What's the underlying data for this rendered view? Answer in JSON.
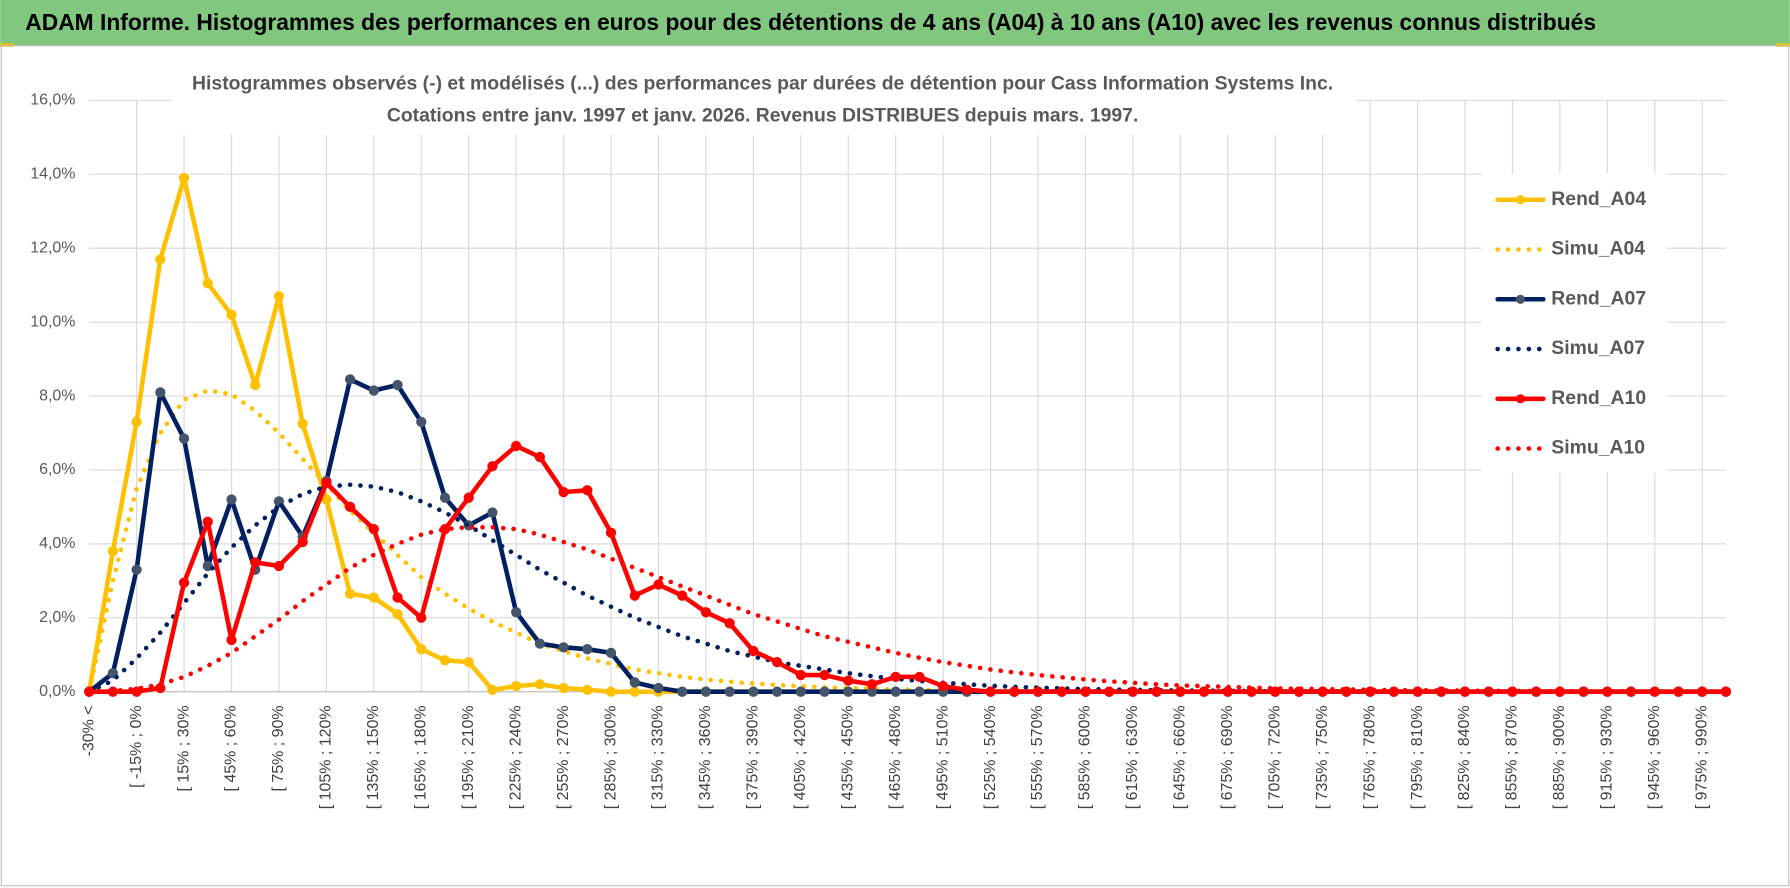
{
  "header": {
    "title": "ADAM Informe. Histogrammes des performances en euros pour des détentions de 4 ans (A04) à 10 ans (A10) avec les revenus connus distribués"
  },
  "chart_data": {
    "type": "line",
    "title": "Histogrammes observés (-) et modélisés (...) des performances par durées de détention pour Cass Information Systems Inc.",
    "subtitle": "Cotations entre janv. 1997 et janv. 2026. Revenus DISTRIBUES depuis mars. 1997.",
    "categories": [
      "-30% <",
      null,
      "[ -15% ; 0%",
      null,
      "[ 15% ; 30%",
      null,
      "[ 45% ; 60%",
      null,
      "[ 75% ; 90%",
      null,
      "[ 105% ; 120%",
      null,
      "[ 135% ; 150%",
      null,
      "[ 165% ; 180%",
      null,
      "[ 195% ; 210%",
      null,
      "[ 225% ; 240%",
      null,
      "[ 255% ; 270%",
      null,
      "[ 285% ; 300%",
      null,
      "[ 315% ; 330%",
      null,
      "[ 345% ; 360%",
      null,
      "[ 375% ; 390%",
      null,
      "[ 405% ; 420%",
      null,
      "[ 435% ; 450%",
      null,
      "[ 465% ; 480%",
      null,
      "[ 495% ; 510%",
      null,
      "[ 525% ; 540%",
      null,
      "[ 555% ; 570%",
      null,
      "[ 585% ; 600%",
      null,
      "[ 615% ; 630%",
      null,
      "[ 645% ; 660%",
      null,
      "[ 675% ; 690%",
      null,
      "[ 705% ; 720%",
      null,
      "[ 735% ; 750%",
      null,
      "[ 765% ; 780%",
      null,
      "[ 795% ; 810%",
      null,
      "[ 825% ; 840%",
      null,
      "[ 855% ; 870%",
      null,
      "[ 885% ; 900%",
      null,
      "[ 915% ; 930%",
      null,
      "[ 945% ; 960%",
      null,
      "[ 975% ; 990%",
      null
    ],
    "series": [
      {
        "name": "Rend_A04",
        "color": "#ffc000",
        "style": "solid",
        "markers": true,
        "marker_color": "#ffc000",
        "values": [
          0,
          3.8,
          7.3,
          11.7,
          13.9,
          11.05,
          10.2,
          8.3,
          10.7,
          7.25,
          5.2,
          2.65,
          2.55,
          2.1,
          1.15,
          0.85,
          0.8,
          0.05,
          0.15,
          0.2,
          0.1,
          0.05,
          0,
          0,
          0,
          0,
          0,
          0,
          0,
          0,
          0,
          0,
          0,
          0,
          0,
          0,
          0,
          0,
          0,
          0,
          0,
          0,
          0,
          0,
          0,
          0,
          0,
          0,
          0,
          0,
          0,
          0,
          0,
          0,
          0,
          0,
          0,
          0,
          0,
          0,
          0,
          0,
          0,
          0,
          0,
          0,
          0,
          0,
          0,
          0
        ]
      },
      {
        "name": "Simu_A04",
        "color": "#ffc000",
        "style": "dotted",
        "markers": false,
        "values": [
          0,
          3.0,
          5.5,
          7.0,
          7.9,
          8.15,
          8.05,
          7.6,
          7.0,
          6.3,
          5.6,
          4.9,
          4.3,
          3.7,
          3.1,
          2.65,
          2.25,
          1.9,
          1.6,
          1.3,
          1.1,
          0.9,
          0.75,
          0.6,
          0.5,
          0.4,
          0.33,
          0.27,
          0.22,
          0.18,
          0.15,
          0.12,
          0.1,
          0.08,
          0.06,
          0.05,
          0.04,
          0.03,
          0.02,
          0.02,
          0.01,
          0.01,
          0.01,
          0,
          0,
          0,
          0,
          0,
          0,
          0,
          0,
          0,
          0,
          0,
          0,
          0,
          0,
          0,
          0,
          0,
          0,
          0,
          0,
          0,
          0,
          0,
          0,
          0,
          0,
          0
        ]
      },
      {
        "name": "Rend_A07",
        "color": "#002060",
        "style": "solid",
        "markers": true,
        "marker_color": "#44546a",
        "values": [
          0,
          0.5,
          3.3,
          8.1,
          6.85,
          3.4,
          5.2,
          3.3,
          5.15,
          4.2,
          5.7,
          8.45,
          8.15,
          8.3,
          7.3,
          5.25,
          4.5,
          4.85,
          2.15,
          1.3,
          1.2,
          1.15,
          1.05,
          0.25,
          0.1,
          0,
          0,
          0,
          0,
          0,
          0,
          0,
          0,
          0,
          0,
          0,
          0,
          0,
          0,
          0,
          0,
          0,
          0,
          0,
          0,
          0,
          0,
          0,
          0,
          0,
          0,
          0,
          0,
          0,
          0,
          0,
          0,
          0,
          0,
          0,
          0,
          0,
          0,
          0,
          0,
          0,
          0,
          0,
          0,
          0
        ]
      },
      {
        "name": "Simu_A07",
        "color": "#002060",
        "style": "dotted",
        "markers": false,
        "values": [
          0,
          0.3,
          0.9,
          1.6,
          2.4,
          3.2,
          3.9,
          4.5,
          5.0,
          5.35,
          5.55,
          5.6,
          5.55,
          5.4,
          5.15,
          4.85,
          4.5,
          4.1,
          3.7,
          3.3,
          2.95,
          2.6,
          2.3,
          2.0,
          1.75,
          1.5,
          1.3,
          1.1,
          0.95,
          0.8,
          0.7,
          0.6,
          0.5,
          0.42,
          0.35,
          0.29,
          0.24,
          0.2,
          0.16,
          0.13,
          0.11,
          0.09,
          0.07,
          0.06,
          0.05,
          0.04,
          0.03,
          0.03,
          0.02,
          0.02,
          0.01,
          0.01,
          0.01,
          0.01,
          0,
          0,
          0,
          0,
          0,
          0,
          0,
          0,
          0,
          0,
          0,
          0,
          0,
          0,
          0,
          0
        ]
      },
      {
        "name": "Rend_A10",
        "color": "#ff0000",
        "style": "solid",
        "markers": true,
        "marker_color": "#ff0000",
        "values": [
          0,
          0,
          0,
          0.1,
          2.95,
          4.6,
          1.4,
          3.5,
          3.4,
          4.05,
          5.65,
          5.0,
          4.4,
          2.55,
          2.0,
          4.4,
          5.25,
          6.1,
          6.65,
          6.35,
          5.4,
          5.45,
          4.3,
          2.6,
          2.9,
          2.6,
          2.15,
          1.85,
          1.1,
          0.8,
          0.45,
          0.45,
          0.3,
          0.2,
          0.4,
          0.4,
          0.15,
          0.05,
          0,
          0,
          0,
          0,
          0,
          0,
          0,
          0,
          0,
          0,
          0,
          0,
          0,
          0,
          0,
          0,
          0,
          0,
          0,
          0,
          0,
          0,
          0,
          0,
          0,
          0,
          0,
          0,
          0,
          0,
          0,
          0
        ]
      },
      {
        "name": "Simu_A10",
        "color": "#ff0000",
        "style": "dotted",
        "markers": false,
        "values": [
          0,
          0.02,
          0.08,
          0.2,
          0.4,
          0.7,
          1.05,
          1.5,
          1.95,
          2.45,
          2.9,
          3.35,
          3.7,
          4.0,
          4.25,
          4.4,
          4.45,
          4.45,
          4.4,
          4.25,
          4.05,
          3.85,
          3.6,
          3.35,
          3.1,
          2.85,
          2.6,
          2.35,
          2.1,
          1.9,
          1.7,
          1.5,
          1.35,
          1.2,
          1.05,
          0.92,
          0.8,
          0.7,
          0.6,
          0.52,
          0.45,
          0.39,
          0.33,
          0.28,
          0.24,
          0.2,
          0.17,
          0.15,
          0.13,
          0.11,
          0.09,
          0.08,
          0.07,
          0.06,
          0.05,
          0.04,
          0.04,
          0.03,
          0.03,
          0.02,
          0.02,
          0.02,
          0.01,
          0.01,
          0.01,
          0.01,
          0,
          0,
          0,
          0
        ]
      }
    ],
    "ylim": [
      0,
      16
    ],
    "yticks": [
      {
        "value": 0,
        "label": "0,0%"
      },
      {
        "value": 2,
        "label": "2,0%"
      },
      {
        "value": 4,
        "label": "4,0%"
      },
      {
        "value": 6,
        "label": "6,0%"
      },
      {
        "value": 8,
        "label": "8,0%"
      },
      {
        "value": 10,
        "label": "10,0%"
      },
      {
        "value": 12,
        "label": "12,0%"
      },
      {
        "value": 14,
        "label": "14,0%"
      },
      {
        "value": 16,
        "label": "16,0%"
      }
    ],
    "grid": true,
    "legend": "right"
  }
}
